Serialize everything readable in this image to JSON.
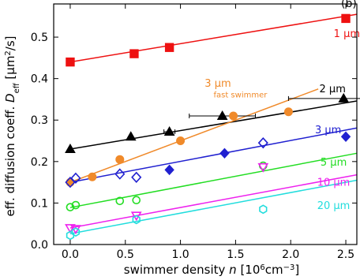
{
  "chart_data": {
    "type": "scatter",
    "panel_label": "(b)",
    "xlabel_main": "swimmer density ",
    "xlabel_var": "n",
    "xlabel_unit_a": " [10",
    "xlabel_unit_exp": "6",
    "xlabel_unit_b": "cm",
    "xlabel_unit_exp2": "−3",
    "xlabel_unit_c": "]",
    "ylabel_main": "eff. diffusion coeff. ",
    "ylabel_var": "D",
    "ylabel_sub": "eff",
    "ylabel_unit_a": "  [μm",
    "ylabel_unit_exp": "2",
    "ylabel_unit_b": "/s]",
    "xlim": [
      -0.15,
      2.6
    ],
    "ylim": [
      0.0,
      0.58
    ],
    "x_ticks": [
      0.0,
      0.5,
      1.0,
      1.5,
      2.0,
      2.5
    ],
    "x_tick_labels": [
      "0.0",
      "0.5",
      "1.0",
      "1.5",
      "2.0",
      "2.5"
    ],
    "y_ticks": [
      0.0,
      0.1,
      0.2,
      0.3,
      0.4,
      0.5
    ],
    "y_tick_labels": [
      "0.0",
      "0.1",
      "0.2",
      "0.3",
      "0.4",
      "0.5"
    ],
    "grid": false,
    "series": [
      {
        "name": "1 μm",
        "color": "#ee1111",
        "marker": "square-filled",
        "points": [
          [
            0.0,
            0.44
          ],
          [
            0.58,
            0.46
          ],
          [
            0.9,
            0.475
          ],
          [
            2.5,
            0.545
          ]
        ],
        "fit": [
          [
            0.0,
            0.44
          ],
          [
            2.6,
            0.555
          ]
        ],
        "label_pos": [
          2.39,
          0.5
        ]
      },
      {
        "name": "2 μm",
        "color": "#000000",
        "marker": "triangle-filled",
        "points": [
          [
            0.0,
            0.23
          ],
          [
            0.55,
            0.26
          ],
          [
            0.9,
            0.272
          ],
          [
            1.38,
            0.31
          ],
          [
            2.48,
            0.352
          ]
        ],
        "xerr": [
          0,
          0,
          0.05,
          0.3,
          0.5
        ],
        "fit": [
          [
            0.0,
            0.23
          ],
          [
            2.6,
            0.346
          ]
        ],
        "label_pos": [
          2.26,
          0.367
        ]
      },
      {
        "name": "3 μm",
        "sub": "fast swimmer",
        "color": "#f08a2a",
        "marker": "circle-filled",
        "points": [
          [
            0.0,
            0.15
          ],
          [
            0.2,
            0.163
          ],
          [
            0.45,
            0.205
          ],
          [
            1.0,
            0.25
          ],
          [
            1.48,
            0.31
          ],
          [
            1.98,
            0.32
          ]
        ],
        "fit": [
          [
            0.0,
            0.15
          ],
          [
            2.25,
            0.375
          ]
        ],
        "label_pos": [
          1.22,
          0.38
        ],
        "sub_pos": [
          1.3,
          0.355
        ]
      },
      {
        "name": "3 μm",
        "color": "#2020d0",
        "marker": "diamond",
        "points": [
          [
            0.0,
            0.15
          ],
          [
            0.05,
            0.16
          ],
          [
            0.45,
            0.17
          ],
          [
            0.6,
            0.162
          ],
          [
            0.9,
            0.18
          ],
          [
            1.4,
            0.22
          ],
          [
            1.75,
            0.245
          ],
          [
            2.5,
            0.26
          ]
        ],
        "filled": [
          false,
          false,
          false,
          false,
          true,
          true,
          false,
          true
        ],
        "fit": [
          [
            0.0,
            0.15
          ],
          [
            2.6,
            0.281
          ]
        ],
        "label_pos": [
          2.22,
          0.268
        ]
      },
      {
        "name": "5 μm",
        "color": "#22dd22",
        "marker": "circle-open",
        "points": [
          [
            0.0,
            0.09
          ],
          [
            0.05,
            0.095
          ],
          [
            0.45,
            0.105
          ],
          [
            0.6,
            0.107
          ],
          [
            1.75,
            0.19
          ]
        ],
        "fit": [
          [
            0.0,
            0.089
          ],
          [
            2.6,
            0.22
          ]
        ],
        "label_pos": [
          2.27,
          0.19
        ]
      },
      {
        "name": "10 μm",
        "color": "#ee22ee",
        "marker": "triangle-down-open",
        "points": [
          [
            0.0,
            0.04
          ],
          [
            0.05,
            0.038
          ],
          [
            0.6,
            0.07
          ],
          [
            1.75,
            0.187
          ]
        ],
        "fit": [
          [
            0.0,
            0.04
          ],
          [
            2.6,
            0.168
          ]
        ],
        "label_pos": [
          2.24,
          0.142
        ]
      },
      {
        "name": "20 μm",
        "color": "#22dddd",
        "marker": "hexagon-open",
        "points": [
          [
            0.0,
            0.022
          ],
          [
            0.05,
            0.03
          ],
          [
            0.6,
            0.06
          ],
          [
            1.75,
            0.085
          ]
        ],
        "fit": [
          [
            0.0,
            0.026
          ],
          [
            2.6,
            0.155
          ]
        ],
        "label_pos": [
          2.24,
          0.086
        ]
      }
    ]
  }
}
